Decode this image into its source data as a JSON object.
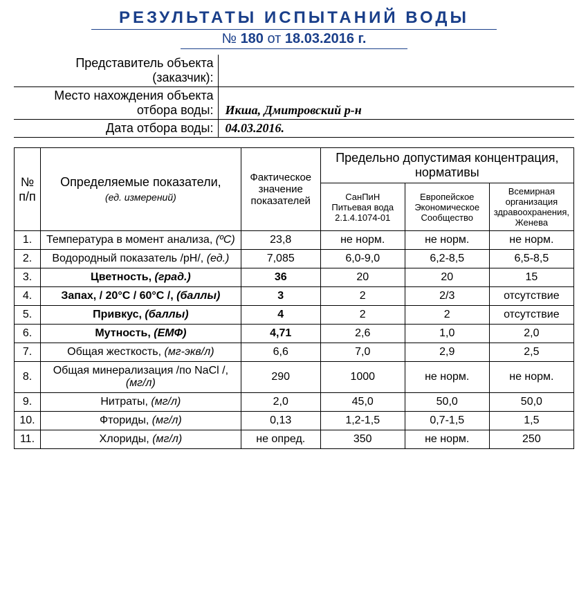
{
  "title": {
    "line1": "РЕЗУЛЬТАТЫ  ИСПЫТАНИЙ  ВОДЫ",
    "numPrefix": "№",
    "num": "180",
    "ot": "от",
    "date": "18.03.2016 г."
  },
  "meta": [
    {
      "label": "Представитель объекта (заказчик):",
      "value": ""
    },
    {
      "label": "Место нахождения объекта отбора воды:",
      "value": "Икша, Дмитровский р-н"
    },
    {
      "label": "Дата отбора воды:",
      "value": "04.03.2016."
    }
  ],
  "headers": {
    "num": "№ п/п",
    "param": "Определяемые показатели,",
    "param_unit": "(ед. измерений)",
    "actual": "Фактическое значение показателей",
    "limitsGroup": "Предельно допустимая концентрация, нормативы",
    "std1": "СанПиН Питьевая вода 2.1.4.1074-01",
    "std2": "Европейское Экономическое Сообщество",
    "std3": "Всемирная организация здравоохранения, Женева"
  },
  "rows": [
    {
      "n": "1.",
      "bold": false,
      "name": "Температура в момент анализа, (ºС)",
      "actual": "23,8",
      "s1": "не норм.",
      "s2": "не норм.",
      "s3": "не норм."
    },
    {
      "n": "2.",
      "bold": false,
      "name": "Водородный показатель /рН/, (ед.)",
      "actual": "7,085",
      "s1": "6,0-9,0",
      "s2": "6,2-8,5",
      "s3": "6,5-8,5"
    },
    {
      "n": "3.",
      "bold": true,
      "name": "Цветность, (град.)",
      "actual": "36",
      "s1": "20",
      "s2": "20",
      "s3": "15"
    },
    {
      "n": "4.",
      "bold": true,
      "name": "Запах, / 20°С / 60°С /, (баллы)",
      "actual": "3",
      "s1": "2",
      "s2": "2/3",
      "s3": "отсутствие"
    },
    {
      "n": "5.",
      "bold": true,
      "name": "Привкус, (баллы)",
      "actual": "4",
      "s1": "2",
      "s2": "2",
      "s3": "отсутствие"
    },
    {
      "n": "6.",
      "bold": true,
      "name": "Мутность, (ЕМФ)",
      "actual": "4,71",
      "s1": "2,6",
      "s2": "1,0",
      "s3": "2,0"
    },
    {
      "n": "7.",
      "bold": false,
      "name": "Общая жесткость, (мг-экв/л)",
      "actual": "6,6",
      "s1": "7,0",
      "s2": "2,9",
      "s3": "2,5"
    },
    {
      "n": "8.",
      "bold": false,
      "name": "Общая минерализация /по NaCl /, (мг/л)",
      "actual": "290",
      "s1": "1000",
      "s2": "не норм.",
      "s3": "не норм."
    },
    {
      "n": "9.",
      "bold": false,
      "name": "Нитраты, (мг/л)",
      "actual": "2,0",
      "s1": "45,0",
      "s2": "50,0",
      "s3": "50,0"
    },
    {
      "n": "10.",
      "bold": false,
      "name": "Фториды, (мг/л)",
      "actual": "0,13",
      "s1": "1,2-1,5",
      "s2": "0,7-1,5",
      "s3": "1,5"
    },
    {
      "n": "11.",
      "bold": false,
      "name": "Хлориды, (мг/л)",
      "actual": "не опред.",
      "s1": "350",
      "s2": "не норм.",
      "s3": "250"
    }
  ],
  "colors": {
    "titleColor": "#1a3f8a",
    "borderColor": "#000000",
    "background": "#ffffff",
    "text": "#000000"
  }
}
